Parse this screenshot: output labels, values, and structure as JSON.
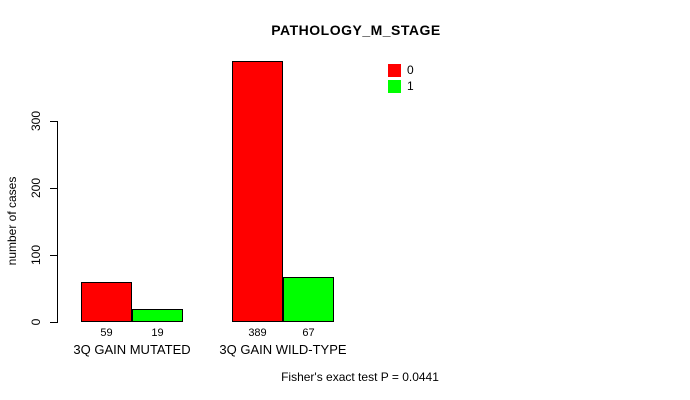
{
  "chart_data": {
    "type": "bar",
    "title": "PATHOLOGY_M_STAGE",
    "xlabel": "",
    "ylabel": "number of cases",
    "categories": [
      "3Q GAIN MUTATED",
      "3Q GAIN WILD-TYPE"
    ],
    "series": [
      {
        "name": "0",
        "color": "#ff0000",
        "values": [
          59,
          389
        ]
      },
      {
        "name": "1",
        "color": "#00ff00",
        "values": [
          19,
          67
        ]
      }
    ],
    "yticks": [
      0,
      100,
      200,
      300
    ],
    "ylim": [
      0,
      400
    ],
    "grid": false,
    "legend_position": "top-right",
    "bar_border_color": "#000000",
    "annotation": "Fisher's exact test P = 0.0441"
  }
}
